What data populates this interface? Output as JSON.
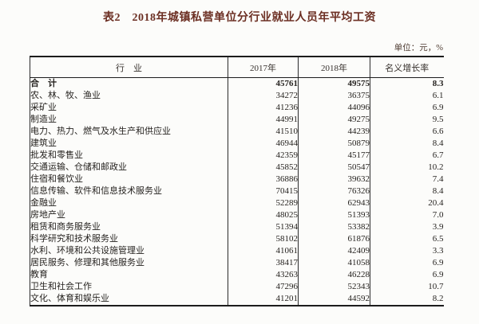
{
  "table_meta": {
    "title": "表2　2018年城镇私营单位分行业就业人员年平均工资",
    "unit_note": "单位：元，%",
    "columns": [
      "行　业",
      "2017年",
      "2018年",
      "名义增长率"
    ],
    "title_color": "#6b2e22",
    "border_color": "#1c1c1c"
  },
  "rows": [
    {
      "industry": "合　计",
      "y2017": "45761",
      "y2018": "49575",
      "growth": "8.3",
      "bold": true
    },
    {
      "industry": "农、林、牧、渔业",
      "y2017": "34272",
      "y2018": "36375",
      "growth": "6.1",
      "bold": false
    },
    {
      "industry": "采矿业",
      "y2017": "41236",
      "y2018": "44096",
      "growth": "6.9",
      "bold": false
    },
    {
      "industry": "制造业",
      "y2017": "44991",
      "y2018": "49275",
      "growth": "9.5",
      "bold": false
    },
    {
      "industry": "电力、热力、燃气及水生产和供应业",
      "y2017": "41510",
      "y2018": "44239",
      "growth": "6.6",
      "bold": false
    },
    {
      "industry": "建筑业",
      "y2017": "46944",
      "y2018": "50879",
      "growth": "8.4",
      "bold": false
    },
    {
      "industry": "批发和零售业",
      "y2017": "42359",
      "y2018": "45177",
      "growth": "6.7",
      "bold": false
    },
    {
      "industry": "交通运输、仓储和邮政业",
      "y2017": "45852",
      "y2018": "50547",
      "growth": "10.2",
      "bold": false
    },
    {
      "industry": "住宿和餐饮业",
      "y2017": "36886",
      "y2018": "39632",
      "growth": "7.4",
      "bold": false
    },
    {
      "industry": "信息传输、软件和信息技术服务业",
      "y2017": "70415",
      "y2018": "76326",
      "growth": "8.4",
      "bold": false
    },
    {
      "industry": "金融业",
      "y2017": "52289",
      "y2018": "62943",
      "growth": "20.4",
      "bold": false
    },
    {
      "industry": "房地产业",
      "y2017": "48025",
      "y2018": "51393",
      "growth": "7.0",
      "bold": false
    },
    {
      "industry": "租赁和商务服务业",
      "y2017": "51394",
      "y2018": "53382",
      "growth": "3.9",
      "bold": false
    },
    {
      "industry": "科学研究和技术服务业",
      "y2017": "58102",
      "y2018": "61876",
      "growth": "6.5",
      "bold": false
    },
    {
      "industry": "水利、环境和公共设施管理业",
      "y2017": "41061",
      "y2018": "42409",
      "growth": "3.3",
      "bold": false
    },
    {
      "industry": "居民服务、修理和其他服务业",
      "y2017": "38417",
      "y2018": "41058",
      "growth": "6.9",
      "bold": false
    },
    {
      "industry": "教育",
      "y2017": "43263",
      "y2018": "46228",
      "growth": "6.9",
      "bold": false
    },
    {
      "industry": "卫生和社会工作",
      "y2017": "47296",
      "y2018": "52343",
      "growth": "10.7",
      "bold": false
    },
    {
      "industry": "文化、体育和娱乐业",
      "y2017": "41201",
      "y2018": "44592",
      "growth": "8.2",
      "bold": false
    }
  ]
}
